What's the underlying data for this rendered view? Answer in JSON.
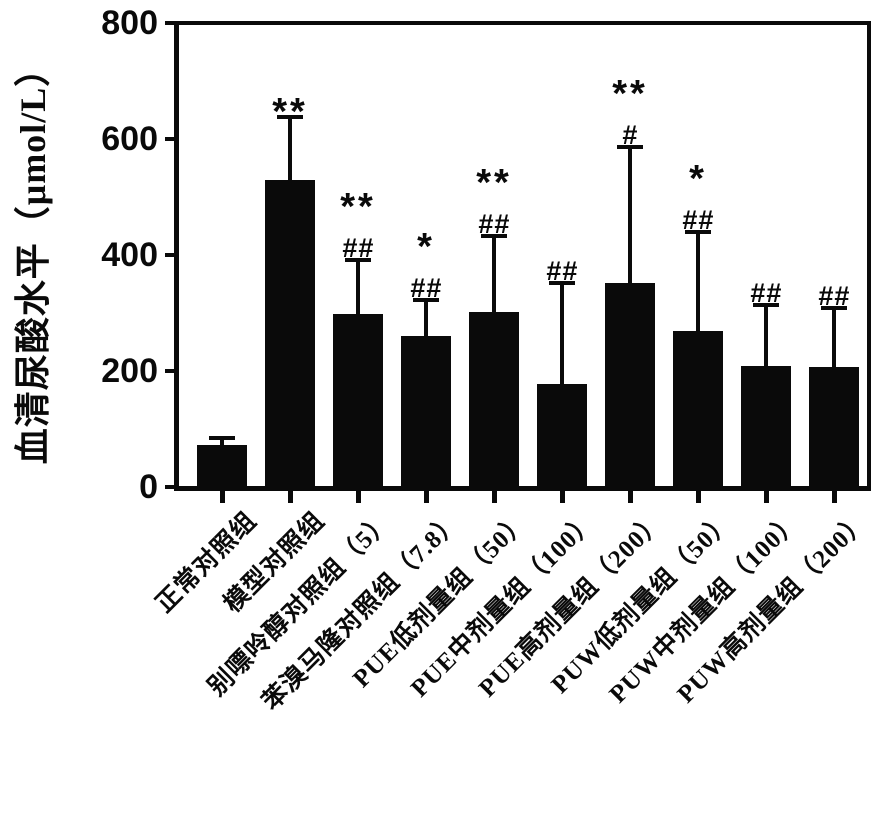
{
  "figure": {
    "background": "#ffffff",
    "ink_color": "#0a0a0a"
  },
  "chart_data": {
    "type": "bar",
    "title": "",
    "xlabel": "",
    "ylabel": "血清尿酸水平（μmol/L）",
    "ylim": [
      0,
      800
    ],
    "yticks": [
      0,
      200,
      400,
      600,
      800
    ],
    "grid": false,
    "legend": null,
    "bar_color": "#0a0a0a",
    "error_bars": "plus_sd",
    "categories": [
      "正常对照组",
      "模型对照组",
      "别嘌呤醇对照组（5）",
      "苯溴马隆对照组（7.8）",
      "PUE低剂量组（50）",
      "PUE中剂量组（100）",
      "PUE高剂量组（200）",
      "PUW低剂量组（50）",
      "PUW中剂量组（100）",
      "PUW高剂量组（200）"
    ],
    "values": [
      73,
      530,
      298,
      261,
      301,
      177,
      352,
      269,
      208,
      207
    ],
    "errors_plus": [
      11,
      108,
      93,
      62,
      131,
      175,
      234,
      171,
      106,
      102
    ],
    "significance": [
      {
        "stars": "",
        "hashes": ""
      },
      {
        "stars": "**",
        "hashes": ""
      },
      {
        "stars": "**",
        "hashes": "##"
      },
      {
        "stars": "*",
        "hashes": "##"
      },
      {
        "stars": "**",
        "hashes": "##"
      },
      {
        "stars": "",
        "hashes": "##"
      },
      {
        "stars": "**",
        "hashes": "#"
      },
      {
        "stars": "*",
        "hashes": "##"
      },
      {
        "stars": "",
        "hashes": "##"
      },
      {
        "stars": "",
        "hashes": "##"
      }
    ]
  }
}
